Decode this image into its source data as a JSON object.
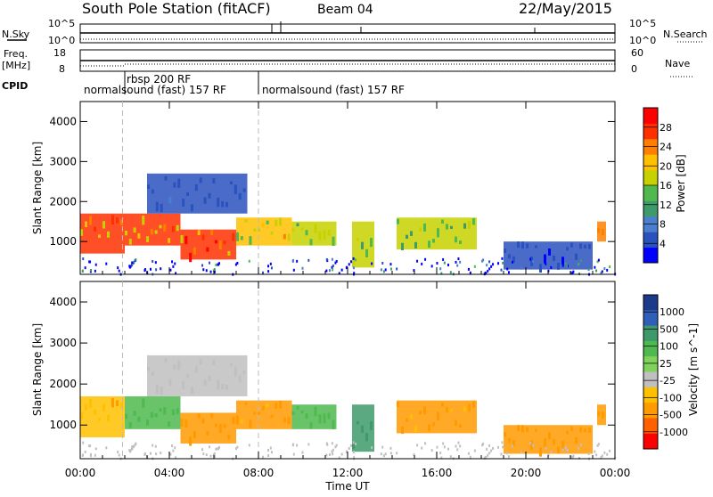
{
  "header": {
    "station": "South Pole Station (fitACF)",
    "beam": "Beam 04",
    "date": "22/May/2015"
  },
  "top_panels": {
    "nsky": {
      "label": "N.Sky",
      "ytick_top": "10^5",
      "ytick_bottom": "10^0"
    },
    "nsearch": {
      "label": "N.Search",
      "ytick_top": "10^5",
      "ytick_bottom": "10^0"
    },
    "freq": {
      "label_line1": "Freq.",
      "label_line2": "[MHz]",
      "ytick_top": "18",
      "ytick_bottom": "8"
    },
    "nave": {
      "label": "Nave",
      "ytick_top": "60",
      "ytick_bottom": "0"
    },
    "cpid": {
      "label": "CPID",
      "segments": [
        {
          "text": "normalsound (fast) 157 RF",
          "start_h": 0
        },
        {
          "text": "rbsp 200 RF",
          "start_h": 1.9
        },
        {
          "text": "normalsound (fast) 157 RF",
          "start_h": 8.0
        }
      ]
    }
  },
  "chart_data": [
    {
      "type": "heatmap",
      "panel": "power",
      "ylabel": "Slant Range [km]",
      "xlabel": "",
      "xlim": [
        0,
        24
      ],
      "ylim": [
        180,
        4500
      ],
      "yticks": [
        1000,
        2000,
        3000,
        4000
      ],
      "colorbar": {
        "label": "Power [dB]",
        "ticks": [
          4,
          8,
          12,
          16,
          20,
          24,
          28
        ],
        "range": [
          0,
          32
        ],
        "colors": [
          "#0000ff",
          "#2a52be",
          "#4a7fd0",
          "#3e9a6a",
          "#4fb84f",
          "#c8d100",
          "#ffc000",
          "#ff8000",
          "#ff3000",
          "#ff0000"
        ]
      },
      "regions": [
        {
          "t0": 0.0,
          "t1": 2.0,
          "r0": 700,
          "r1": 1700,
          "value": 26
        },
        {
          "t0": 2.0,
          "t1": 4.5,
          "r0": 900,
          "r1": 1700,
          "value": 26
        },
        {
          "t0": 4.5,
          "t1": 7.0,
          "r0": 550,
          "r1": 1300,
          "value": 28
        },
        {
          "t0": 7.0,
          "t1": 9.5,
          "r0": 900,
          "r1": 1600,
          "value": 22
        },
        {
          "t0": 9.5,
          "t1": 11.5,
          "r0": 900,
          "r1": 1500,
          "value": 18
        },
        {
          "t0": 12.2,
          "t1": 13.2,
          "r0": 350,
          "r1": 1500,
          "value": 16
        },
        {
          "t0": 14.2,
          "t1": 17.8,
          "r0": 800,
          "r1": 1600,
          "value": 18
        },
        {
          "t0": 3.0,
          "t1": 7.5,
          "r0": 1700,
          "r1": 2700,
          "value": 6
        },
        {
          "t0": 19.0,
          "t1": 23.0,
          "r0": 300,
          "r1": 1000,
          "value": 5
        },
        {
          "t0": 23.2,
          "t1": 23.6,
          "r0": 1000,
          "r1": 1500,
          "value": 24
        }
      ]
    },
    {
      "type": "heatmap",
      "panel": "velocity",
      "ylabel": "Slant Range [km]",
      "xlabel": "Time UT",
      "xlim": [
        0,
        24
      ],
      "ylim": [
        180,
        4500
      ],
      "yticks": [
        1000,
        2000,
        3000,
        4000
      ],
      "xticks": [
        "00:00",
        "04:00",
        "08:00",
        "12:00",
        "16:00",
        "20:00",
        "00:00"
      ],
      "colorbar": {
        "label": "Velocity [m s^-1]",
        "ticks": [
          1000,
          500,
          100,
          25,
          -25,
          -100,
          -500,
          -1000
        ],
        "colors": [
          "#1c3a8a",
          "#2f5fb8",
          "#3e9a6a",
          "#4fb84f",
          "#7fd35a",
          "#c0c0c0",
          "#ffc000",
          "#ff9a00",
          "#ff6000",
          "#ff0000"
        ]
      },
      "regions": [
        {
          "t0": 0.0,
          "t1": 2.0,
          "r0": 700,
          "r1": 1700,
          "value": -100
        },
        {
          "t0": 2.0,
          "t1": 4.5,
          "r0": 900,
          "r1": 1700,
          "value": 50
        },
        {
          "t0": 4.5,
          "t1": 7.0,
          "r0": 550,
          "r1": 1300,
          "value": -200
        },
        {
          "t0": 7.0,
          "t1": 9.5,
          "r0": 900,
          "r1": 1600,
          "value": -150
        },
        {
          "t0": 9.5,
          "t1": 11.5,
          "r0": 900,
          "r1": 1500,
          "value": 80
        },
        {
          "t0": 12.2,
          "t1": 13.2,
          "r0": 350,
          "r1": 1500,
          "value": 300
        },
        {
          "t0": 14.2,
          "t1": 17.8,
          "r0": 800,
          "r1": 1600,
          "value": -150
        },
        {
          "t0": 3.0,
          "t1": 7.5,
          "r0": 1700,
          "r1": 2700,
          "value": 0
        },
        {
          "t0": 19.0,
          "t1": 23.0,
          "r0": 300,
          "r1": 1000,
          "value": -200
        },
        {
          "t0": 23.2,
          "t1": 23.6,
          "r0": 1000,
          "r1": 1500,
          "value": -300
        }
      ]
    }
  ]
}
